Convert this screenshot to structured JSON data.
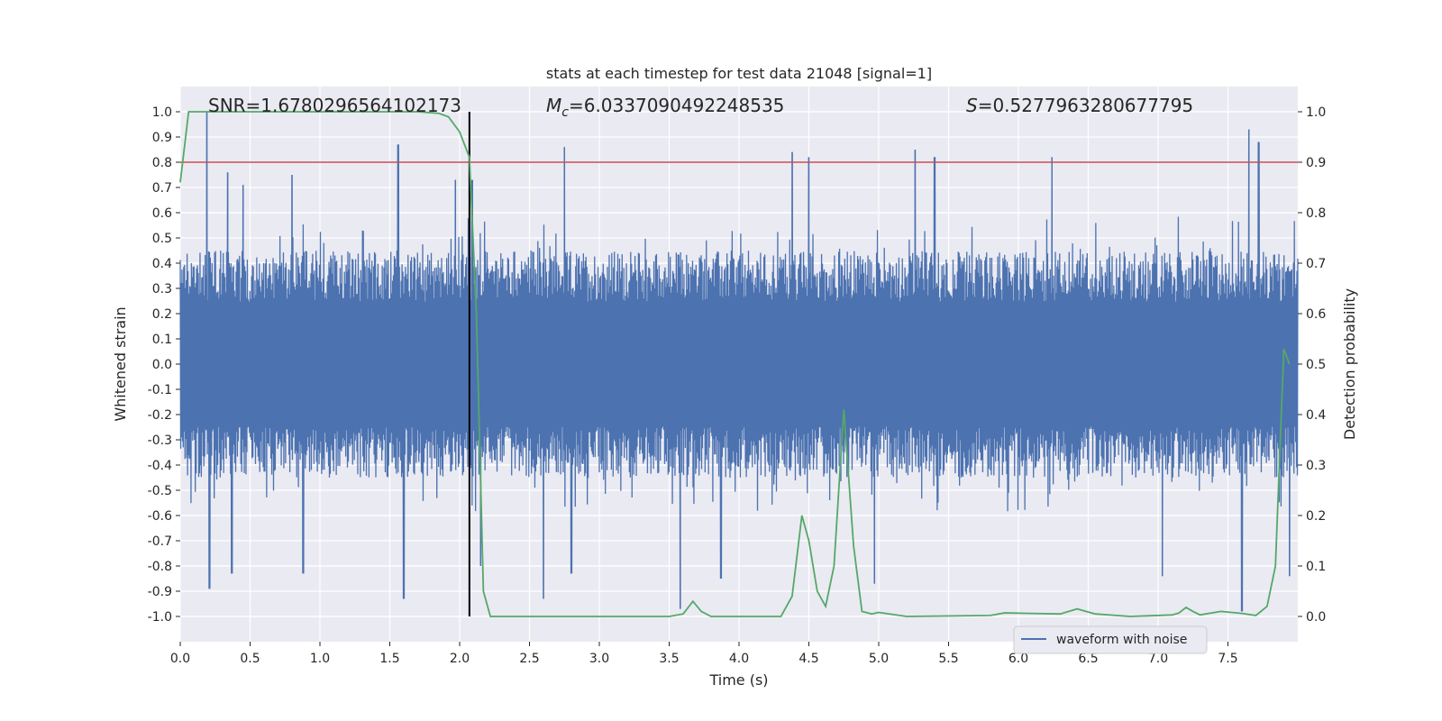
{
  "chart_data": {
    "type": "line",
    "title": "stats at each timestep for test data 21048 [signal=1]",
    "xlabel": "Time (s)",
    "ylabel_left": "Whitened strain",
    "ylabel_right": "Detection probability",
    "xlim": [
      0.0,
      8.0
    ],
    "ylim_left": [
      -1.1,
      1.1
    ],
    "ylim_right": [
      -0.05,
      1.05
    ],
    "xticks": [
      "0.0",
      "0.5",
      "1.0",
      "1.5",
      "2.0",
      "2.5",
      "3.0",
      "3.5",
      "4.0",
      "4.5",
      "5.0",
      "5.5",
      "6.0",
      "6.5",
      "7.0",
      "7.5"
    ],
    "yticks_left": [
      "1.0",
      "0.9",
      "0.8",
      "0.7",
      "0.6",
      "0.5",
      "0.4",
      "0.3",
      "0.2",
      "0.1",
      "0.0",
      "-0.1",
      "-0.2",
      "-0.3",
      "-0.4",
      "-0.5",
      "-0.6",
      "-0.7",
      "-0.8",
      "-0.9",
      "-1.0"
    ],
    "yticks_right": [
      "1.0",
      "0.9",
      "0.8",
      "0.7",
      "0.6",
      "0.5",
      "0.4",
      "0.3",
      "0.2",
      "0.1",
      "0.0"
    ],
    "grid": true,
    "legend": {
      "placement": "lower-right",
      "entries": [
        "waveform with noise"
      ]
    },
    "annotations": {
      "snr": "SNR=1.6780296564102173",
      "mc_symbol": "M",
      "mc_sub": "c",
      "mc_value": "=6.0337090492248535",
      "s_symbol": "S",
      "s_value": "=0.5277963280677795"
    },
    "threshold": {
      "axis": "right",
      "value": 0.9,
      "color": "#c44e52"
    },
    "marker_line": {
      "x": 2.07,
      "y_range_left": [
        -1.0,
        1.0
      ],
      "color": "#000000"
    },
    "series": [
      {
        "name": "waveform with noise",
        "axis": "left",
        "color": "#4c72b0",
        "note_type": "noise",
        "x_range": [
          0.0,
          8.0
        ],
        "envelope_typical": 0.45,
        "peaks": [
          [
            0.19,
            1.0
          ],
          [
            0.34,
            0.76
          ],
          [
            0.45,
            0.71
          ],
          [
            0.8,
            0.75
          ],
          [
            1.56,
            0.87
          ],
          [
            1.97,
            0.73
          ],
          [
            2.09,
            0.73
          ],
          [
            2.75,
            0.86
          ],
          [
            4.38,
            0.84
          ],
          [
            4.5,
            0.82
          ],
          [
            5.26,
            0.85
          ],
          [
            5.4,
            0.82
          ],
          [
            6.24,
            0.82
          ],
          [
            7.65,
            0.93
          ],
          [
            7.72,
            0.88
          ]
        ],
        "troughs": [
          [
            0.21,
            -0.89
          ],
          [
            0.37,
            -0.83
          ],
          [
            0.88,
            -0.83
          ],
          [
            1.6,
            -0.93
          ],
          [
            2.15,
            -0.8
          ],
          [
            2.6,
            -0.93
          ],
          [
            2.8,
            -0.83
          ],
          [
            3.58,
            -0.97
          ],
          [
            3.87,
            -0.85
          ],
          [
            4.97,
            -0.87
          ],
          [
            7.03,
            -0.84
          ],
          [
            7.6,
            -0.98
          ],
          [
            7.94,
            -0.84
          ]
        ]
      },
      {
        "name": "",
        "axis": "right",
        "color": "#55a868",
        "x": [
          0.0,
          0.06,
          0.15,
          0.3,
          0.6,
          1.0,
          1.4,
          1.7,
          1.85,
          1.92,
          2.0,
          2.07,
          2.12,
          2.17,
          2.22,
          2.27,
          2.4,
          2.8,
          3.2,
          3.5,
          3.6,
          3.67,
          3.73,
          3.8,
          3.9,
          4.1,
          4.3,
          4.38,
          4.45,
          4.5,
          4.56,
          4.62,
          4.68,
          4.75,
          4.82,
          4.88,
          4.95,
          5.0,
          5.2,
          5.8,
          5.9,
          6.3,
          6.42,
          6.55,
          6.8,
          7.1,
          7.15,
          7.2,
          7.25,
          7.3,
          7.45,
          7.6,
          7.7,
          7.78,
          7.84,
          7.9,
          7.94
        ],
        "y": [
          0.86,
          1.0,
          1.0,
          1.0,
          1.0,
          1.0,
          1.0,
          1.0,
          0.997,
          0.99,
          0.96,
          0.91,
          0.6,
          0.05,
          0.0,
          0.0,
          0.0,
          0.0,
          0.0,
          0.0,
          0.005,
          0.03,
          0.01,
          0.0,
          0.0,
          0.0,
          0.0,
          0.04,
          0.2,
          0.15,
          0.05,
          0.02,
          0.1,
          0.41,
          0.14,
          0.01,
          0.005,
          0.008,
          0.0,
          0.002,
          0.007,
          0.005,
          0.015,
          0.005,
          0.0,
          0.003,
          0.007,
          0.018,
          0.01,
          0.003,
          0.01,
          0.006,
          0.002,
          0.02,
          0.1,
          0.53,
          0.5
        ]
      }
    ]
  }
}
